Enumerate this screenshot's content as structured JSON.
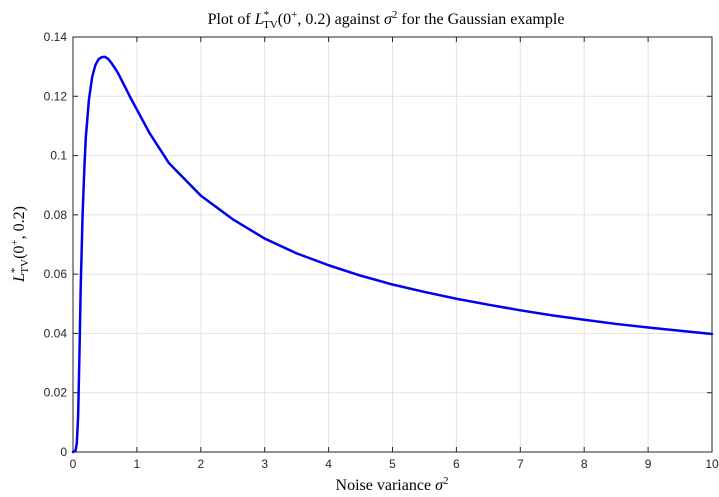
{
  "chart_data": {
    "type": "line",
    "title": {
      "prefix": "Plot of ",
      "L": "L",
      "star": "*",
      "tv": "TV",
      "args": "(0",
      "plus": "+",
      "args_end": ", 0.2) against ",
      "sigma": "σ",
      "two": "2",
      "suffix": " for the Gaussian example"
    },
    "xlabel": {
      "text": "Noise variance ",
      "sigma": "σ",
      "two": "2"
    },
    "ylabel": {
      "L": "L",
      "star": "*",
      "tv": "TV",
      "args": "(0",
      "plus": "+",
      "args_end": ", 0.2)"
    },
    "xlim": [
      0,
      10
    ],
    "ylim": [
      0,
      0.14
    ],
    "xticks": [
      "0",
      "1",
      "2",
      "3",
      "4",
      "5",
      "6",
      "7",
      "8",
      "9",
      "10"
    ],
    "yticks": [
      "0",
      "0.02",
      "0.04",
      "0.06",
      "0.08",
      "0.1",
      "0.12",
      "0.14"
    ],
    "grid": true,
    "line_color": "#0000ee",
    "series": [
      {
        "x": [
          0,
          0.04,
          0.06,
          0.08,
          0.1,
          0.12,
          0.15,
          0.18,
          0.2,
          0.25,
          0.3,
          0.35,
          0.4,
          0.45,
          0.5,
          0.55,
          0.6,
          0.7,
          0.8,
          0.9,
          1.0,
          1.2,
          1.5,
          2.0,
          2.5,
          3.0,
          3.5,
          4.0,
          4.5,
          5.0,
          5.5,
          6.0,
          6.5,
          7.0,
          7.5,
          8.0,
          8.5,
          9.0,
          9.5,
          10.0
        ],
        "y": [
          0,
          0.0005,
          0.003,
          0.012,
          0.032,
          0.055,
          0.08,
          0.097,
          0.106,
          0.119,
          0.1265,
          0.1305,
          0.1325,
          0.1332,
          0.1333,
          0.1326,
          0.1313,
          0.128,
          0.1238,
          0.1195,
          0.1155,
          0.1075,
          0.0975,
          0.0865,
          0.0785,
          0.072,
          0.067,
          0.063,
          0.0595,
          0.0565,
          0.054,
          0.0517,
          0.0497,
          0.0478,
          0.0461,
          0.0446,
          0.0432,
          0.042,
          0.0409,
          0.0398
        ]
      }
    ]
  }
}
